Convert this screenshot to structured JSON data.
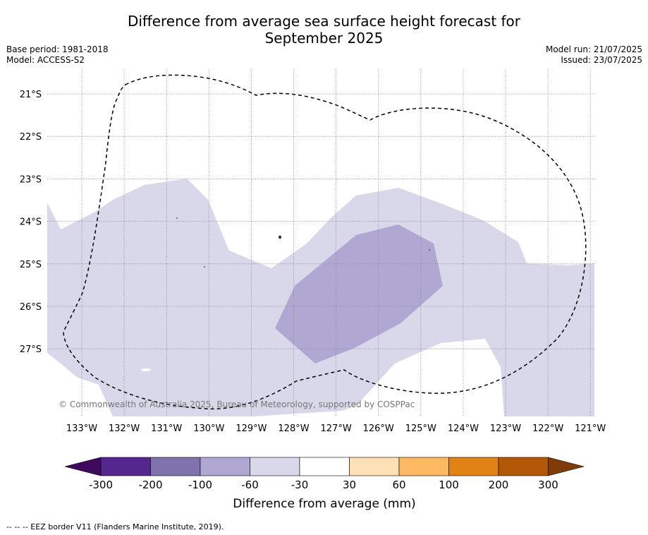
{
  "title": {
    "line1": "Difference from average sea surface height forecast for",
    "line2": "September 2025"
  },
  "meta": {
    "base_period": "Base period: 1981-2018",
    "model": "Model: ACCESS-S2",
    "model_run": "Model run: 21/07/2025",
    "issued": "Issued: 23/07/2025"
  },
  "map": {
    "lat_labels": [
      "21°S",
      "22°S",
      "23°S",
      "24°S",
      "25°S",
      "26°S",
      "27°S"
    ],
    "lon_labels": [
      "133°W",
      "132°W",
      "131°W",
      "130°W",
      "129°W",
      "128°W",
      "127°W",
      "126°W",
      "125°W",
      "124°W",
      "123°W",
      "122°W",
      "121°W"
    ],
    "copyright": "© Commonwealth of Australia 2025, Bureau of Meteorology, supported by COSPPac",
    "fill_colors": {
      "-60": "#d8d8ea",
      "-100": "#b0a8d3"
    }
  },
  "colorbar": {
    "tick_labels": [
      "-300",
      "-200",
      "-100",
      "-60",
      "-30",
      "30",
      "60",
      "100",
      "200",
      "300"
    ],
    "colors": [
      "#3f0a5e",
      "#54278f",
      "#7f72ad",
      "#b0a8d3",
      "#d8d8ea",
      "#ffffff",
      "#fee0b6",
      "#fdb863",
      "#e08214",
      "#b35806",
      "#7f3b08"
    ],
    "label": "Difference from average (mm)"
  },
  "footer": {
    "eez_note": "--  --  -- EEZ border V11 (Flanders Marine Institute, 2019)."
  }
}
